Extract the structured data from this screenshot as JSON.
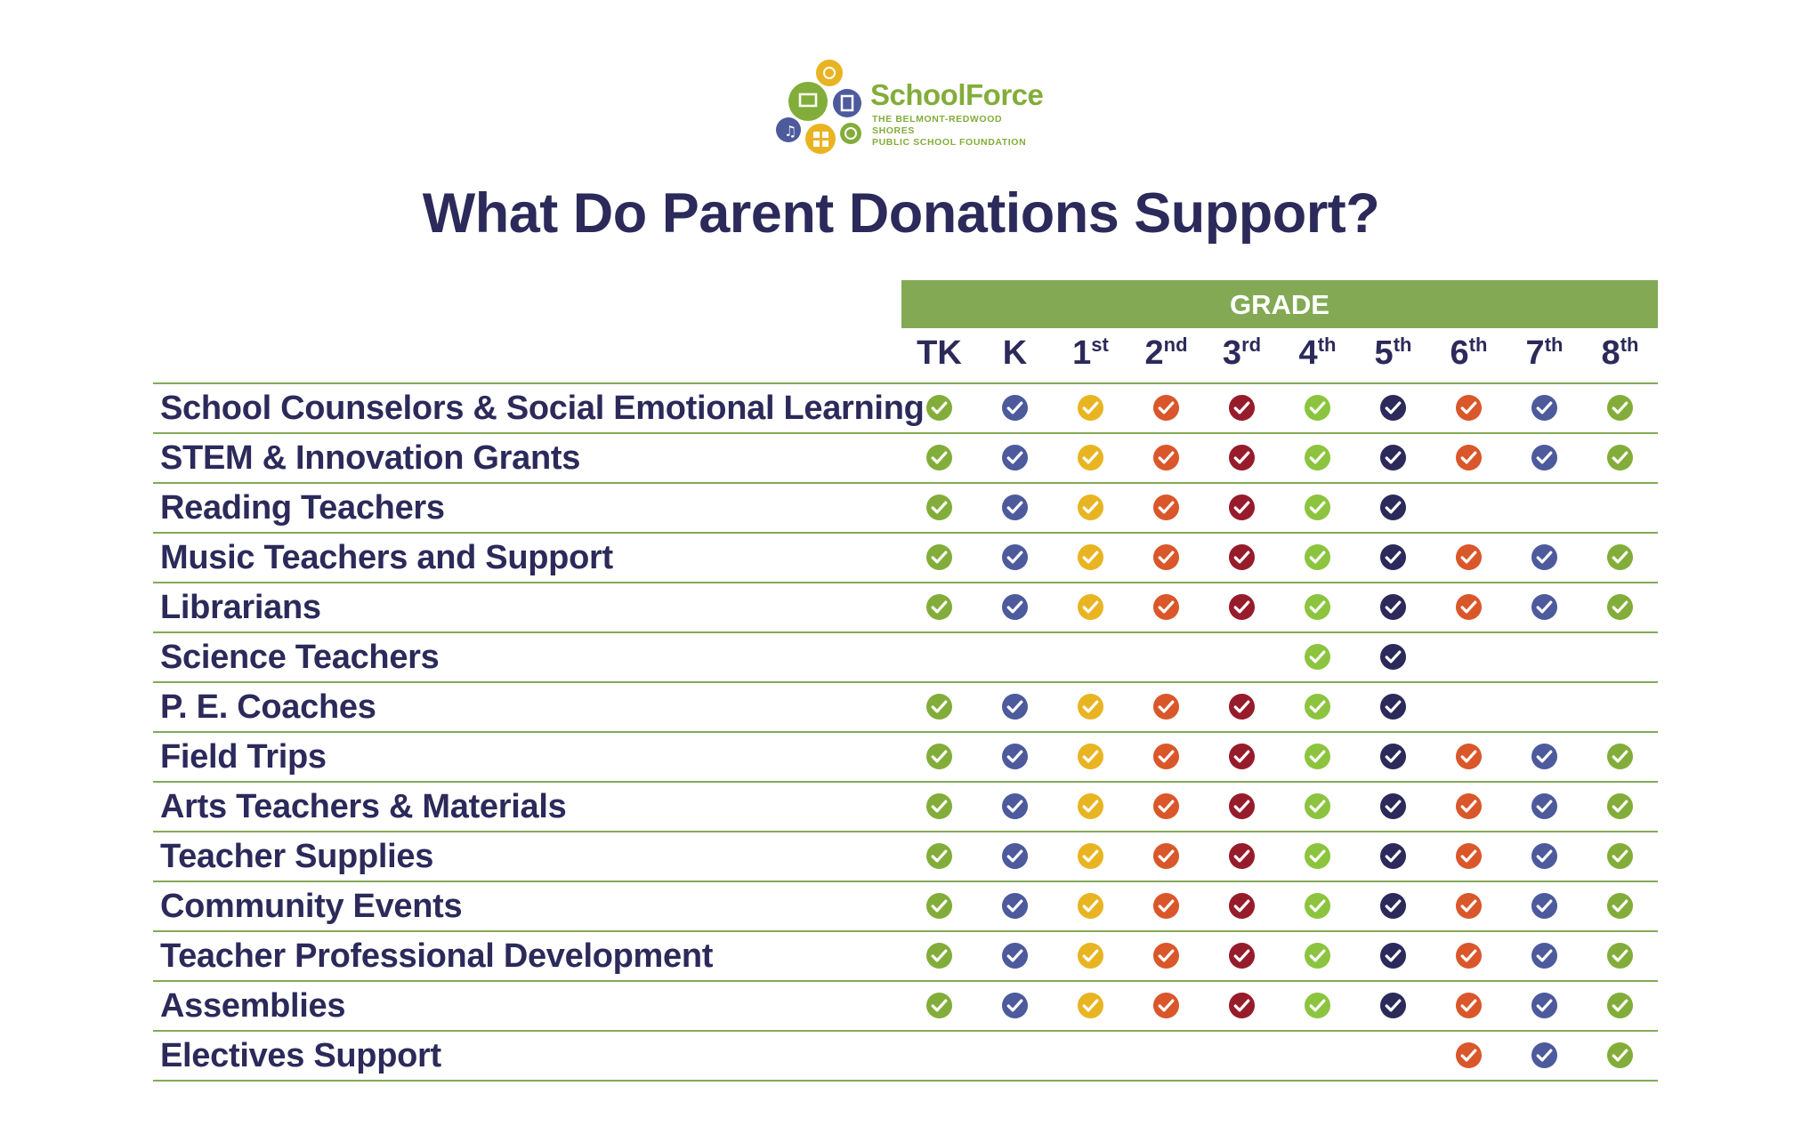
{
  "logo": {
    "name": "SchoolForce",
    "tagline": "THE BELMONT-REDWOOD SHORES\nPUBLIC SCHOOL FOUNDATION"
  },
  "title": "What Do Parent Donations Support?",
  "grade_header": "GRADE",
  "grades": [
    {
      "main": "TK",
      "sup": "",
      "color": "#83ad3a"
    },
    {
      "main": "K",
      "sup": "",
      "color": "#4d5a9c"
    },
    {
      "main": "1",
      "sup": "st",
      "color": "#e8b422"
    },
    {
      "main": "2",
      "sup": "nd",
      "color": "#d9572a"
    },
    {
      "main": "3",
      "sup": "rd",
      "color": "#961c2c"
    },
    {
      "main": "4",
      "sup": "th",
      "color": "#8cc43f"
    },
    {
      "main": "5",
      "sup": "th",
      "color": "#2b2a5a"
    },
    {
      "main": "6",
      "sup": "th",
      "color": "#d9572a"
    },
    {
      "main": "7",
      "sup": "th",
      "color": "#4d5a9c"
    },
    {
      "main": "8",
      "sup": "th",
      "color": "#83ad3a"
    }
  ],
  "rows": [
    {
      "label": "School Counselors & Social Emotional Learning",
      "checks": [
        1,
        1,
        1,
        1,
        1,
        1,
        1,
        1,
        1,
        1
      ]
    },
    {
      "label": "STEM & Innovation Grants",
      "checks": [
        1,
        1,
        1,
        1,
        1,
        1,
        1,
        1,
        1,
        1
      ]
    },
    {
      "label": "Reading Teachers",
      "checks": [
        1,
        1,
        1,
        1,
        1,
        1,
        1,
        0,
        0,
        0
      ]
    },
    {
      "label": "Music Teachers and Support",
      "checks": [
        1,
        1,
        1,
        1,
        1,
        1,
        1,
        1,
        1,
        1
      ]
    },
    {
      "label": "Librarians",
      "checks": [
        1,
        1,
        1,
        1,
        1,
        1,
        1,
        1,
        1,
        1
      ]
    },
    {
      "label": "Science Teachers",
      "checks": [
        0,
        0,
        0,
        0,
        0,
        1,
        1,
        0,
        0,
        0
      ]
    },
    {
      "label": "P. E. Coaches",
      "checks": [
        1,
        1,
        1,
        1,
        1,
        1,
        1,
        0,
        0,
        0
      ]
    },
    {
      "label": "Field Trips",
      "checks": [
        1,
        1,
        1,
        1,
        1,
        1,
        1,
        1,
        1,
        1
      ]
    },
    {
      "label": "Arts Teachers & Materials",
      "checks": [
        1,
        1,
        1,
        1,
        1,
        1,
        1,
        1,
        1,
        1
      ]
    },
    {
      "label": "Teacher Supplies",
      "checks": [
        1,
        1,
        1,
        1,
        1,
        1,
        1,
        1,
        1,
        1
      ]
    },
    {
      "label": "Community Events",
      "checks": [
        1,
        1,
        1,
        1,
        1,
        1,
        1,
        1,
        1,
        1
      ]
    },
    {
      "label": "Teacher Professional Development",
      "checks": [
        1,
        1,
        1,
        1,
        1,
        1,
        1,
        1,
        1,
        1
      ]
    },
    {
      "label": "Assemblies",
      "checks": [
        1,
        1,
        1,
        1,
        1,
        1,
        1,
        1,
        1,
        1
      ]
    },
    {
      "label": "Electives Support",
      "checks": [
        0,
        0,
        0,
        0,
        0,
        0,
        0,
        1,
        1,
        1
      ]
    }
  ]
}
